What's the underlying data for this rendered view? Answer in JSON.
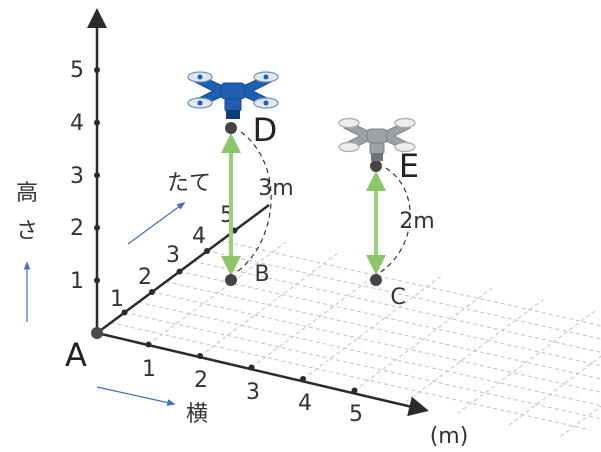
{
  "axes": {
    "height_label": [
      "高",
      "さ"
    ],
    "depth_label": "たて",
    "width_label": "横",
    "unit": "(m)",
    "height_ticks": [
      "1",
      "2",
      "3",
      "4",
      "5"
    ],
    "depth_ticks": [
      "1",
      "2",
      "3",
      "4",
      "5"
    ],
    "width_ticks": [
      "1",
      "2",
      "3",
      "4",
      "5"
    ]
  },
  "points": {
    "A": "A",
    "B": "B",
    "C": "C",
    "D": "D",
    "E": "E"
  },
  "measurements": {
    "d_height": "3m",
    "e_height": "2m"
  },
  "colors": {
    "axis": "#2b2b2b",
    "grid": "#bdbdbd",
    "arrow_blue": "#3f6fc8",
    "measure_green": "#9ccf7c",
    "drone_blue": "#1e5fb4",
    "drone_gray": "#9ea2a8"
  },
  "icons": {
    "drone_d": "drone-icon",
    "drone_e": "drone-icon"
  }
}
